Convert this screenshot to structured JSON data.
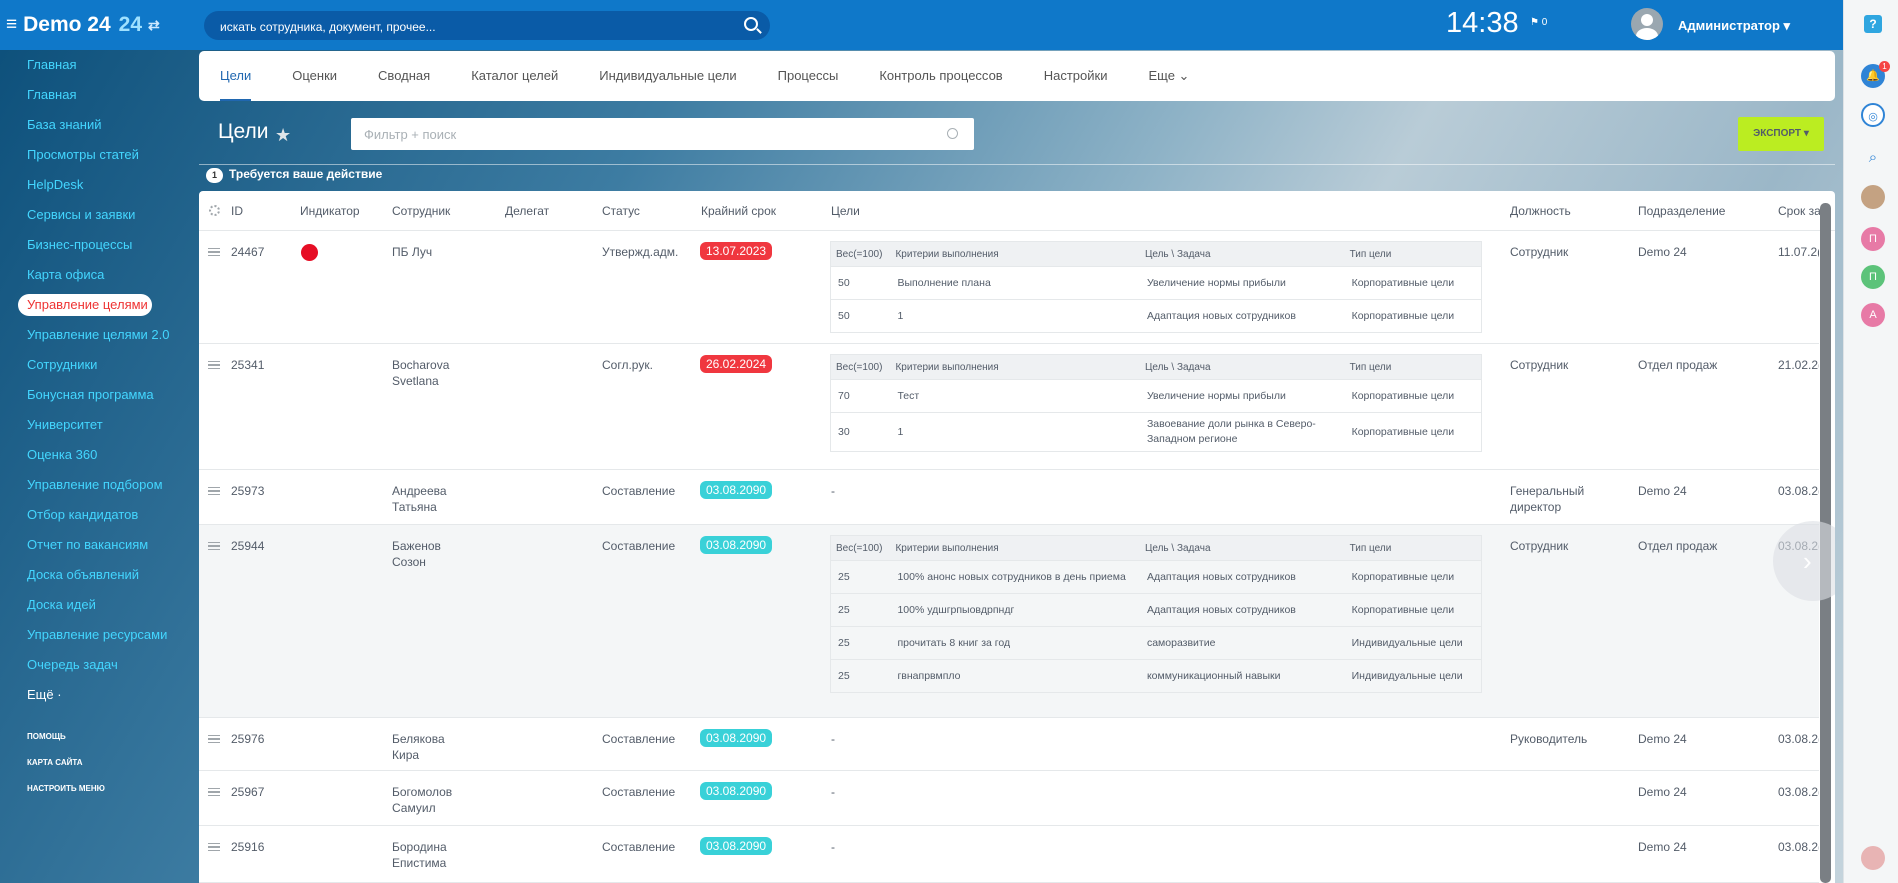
{
  "header": {
    "app": "Demo 24",
    "app_num": "24",
    "search": "искать сотрудника, документ, прочее...",
    "time": "14:38",
    "flag_count": "0",
    "user": "Администратор"
  },
  "sidebar": {
    "items": [
      "Главная",
      "Главная",
      "База знаний",
      "Просмотры статей",
      "HelpDesk",
      "Сервисы и заявки",
      "Бизнес-процессы",
      "Карта офиса",
      "Управление целями",
      "Управление целями 2.0",
      "Сотрудники",
      "Бонусная программа",
      "Университет",
      "Оценка 360",
      "Управление подбором",
      "Отбор кандидатов",
      "Отчет по вакансиям",
      "Доска объявлений",
      "Доска идей",
      "Управление ресурсами",
      "Очередь задач"
    ],
    "active": 8,
    "more": "Ещё",
    "help": "ПОМОЩЬ",
    "site_map": "КАРТА САЙТА",
    "config": "НАСТРОИТЬ МЕНЮ"
  },
  "tabs": [
    "Цели",
    "Оценки",
    "Сводная",
    "Каталог целей",
    "Индивидуальные цели",
    "Процессы",
    "Контроль процессов",
    "Настройки",
    "Еще"
  ],
  "page": {
    "title": "Цели",
    "filter_placeholder": "Фильтр + поиск",
    "export": "ЭКСПОРТ",
    "action_count": "1",
    "action_text": "Требуется ваше действие"
  },
  "columns": [
    "ID",
    "Индикатор",
    "Сотрудник",
    "Делегат",
    "Статус",
    "Крайний срок",
    "Цели",
    "Должность",
    "Подразделение",
    "Срок за"
  ],
  "goal_headers": [
    "Вес(=100)",
    "Критерии выполнения",
    "Цель \\ Задача",
    "Тип цели"
  ],
  "rows": [
    {
      "id": "24467",
      "indicator": "red",
      "employee": "ПБ Луч",
      "status": "Утвержд.адм.",
      "deadline": "13.07.2023",
      "deadline_color": "red",
      "position": "Сотрудник",
      "dept": "Demo 24",
      "due": "11.07.2(",
      "goals": [
        [
          "50",
          "Выполнение плана",
          "Увеличение нормы прибыли",
          "Корпоративные цели"
        ],
        [
          "50",
          "1",
          "Адаптация новых сотрудников",
          "Корпоративные цели"
        ]
      ]
    },
    {
      "id": "25341",
      "employee": "Bocharova Svetlana",
      "status": "Согл.рук.",
      "deadline": "26.02.2024",
      "deadline_color": "red",
      "position": "Сотрудник",
      "dept": "Отдел продаж",
      "due": "21.02.2(",
      "goals": [
        [
          "70",
          "Тест",
          "Увеличение нормы прибыли",
          "Корпоративные цели"
        ],
        [
          "30",
          "1",
          "Завоевание доли рынка в Северо-Западном регионе",
          "Корпоративные цели"
        ]
      ]
    },
    {
      "id": "25973",
      "employee": "Андреева Татьяна",
      "status": "Составление",
      "deadline": "03.08.2090",
      "deadline_color": "teal",
      "goals_text": "-",
      "position": "Генеральный директор",
      "dept": "Demo 24",
      "due": "03.08.2("
    },
    {
      "id": "25944",
      "employee": "Баженов Созон",
      "status": "Составление",
      "deadline": "03.08.2090",
      "deadline_color": "teal",
      "position": "Сотрудник",
      "dept": "Отдел продаж",
      "due": "03.08.2(",
      "goals": [
        [
          "25",
          "100% анонс новых сотрудников в день приема",
          "Адаптация новых сотрудников",
          "Корпоративные цели"
        ],
        [
          "25",
          "100% удшгрпыовдрпндг",
          "Адаптация новых сотрудников",
          "Корпоративные цели"
        ],
        [
          "25",
          "прочитать 8 книг за год",
          "саморазвитие",
          "Индивидуальные цели"
        ],
        [
          "25",
          "гвнапрвмпло",
          "коммуникационный навыки",
          "Индивидуальные цели"
        ]
      ]
    },
    {
      "id": "25976",
      "employee": "Белякова Кира",
      "status": "Составление",
      "deadline": "03.08.2090",
      "deadline_color": "teal",
      "goals_text": "-",
      "position": "Руководитель",
      "dept": "Demo 24",
      "due": "03.08.2("
    },
    {
      "id": "25967",
      "employee": "Богомолов Самуил",
      "status": "Составление",
      "deadline": "03.08.2090",
      "deadline_color": "teal",
      "goals_text": "-",
      "position": "",
      "dept": "Demo 24",
      "due": "03.08.2("
    },
    {
      "id": "25916",
      "employee": "Бородина Епистима",
      "status": "Составление",
      "deadline": "03.08.2090",
      "deadline_color": "teal",
      "goals_text": "-",
      "position": "",
      "dept": "Demo 24",
      "due": "03.08.2("
    }
  ]
}
